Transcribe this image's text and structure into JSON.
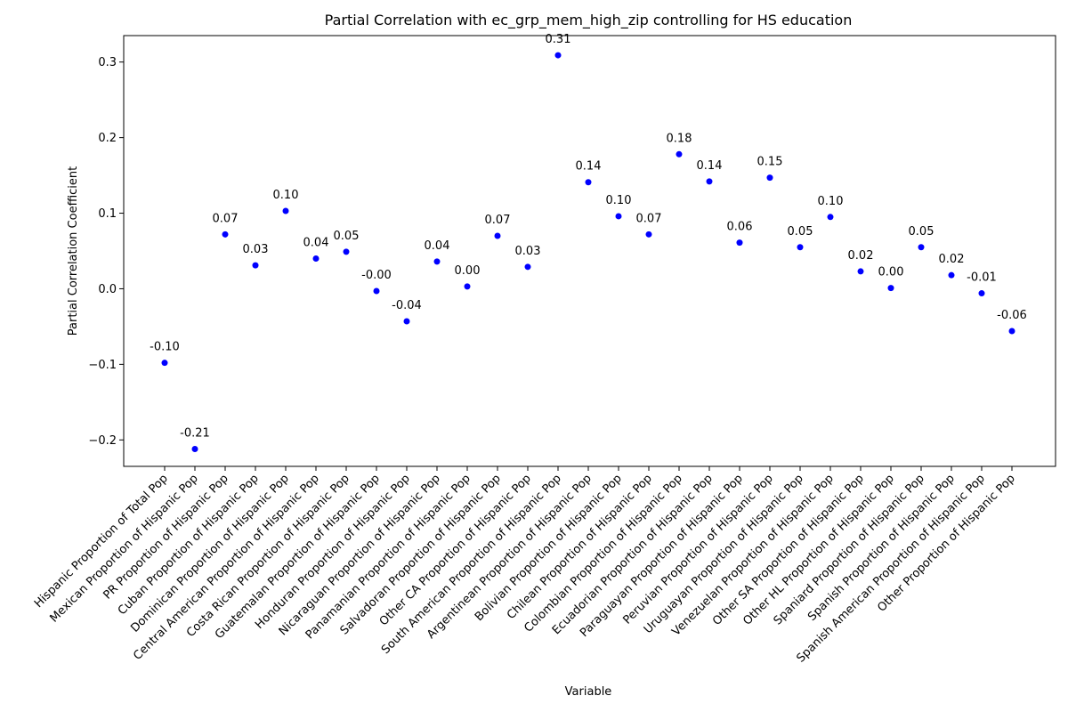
{
  "chart_data": {
    "type": "scatter",
    "title": "Partial Correlation with ec_grp_mem_high_zip controlling for HS education",
    "xlabel": "Variable",
    "ylabel": "Partial Correlation Coefficient",
    "ylim": [
      -0.235,
      0.335
    ],
    "yticks": [
      -0.2,
      -0.1,
      0.0,
      0.1,
      0.2,
      0.3
    ],
    "ytick_labels": [
      "−0.2",
      "−0.1",
      "0.0",
      "0.1",
      "0.2",
      "0.3"
    ],
    "grid": false,
    "marker_color": "#0000ff",
    "categories": [
      "Hispanic Proportion of Total Pop",
      "Mexican Proportion of Hispanic Pop",
      "PR Proportion of Hispanic Pop",
      "Cuban Proportion of Hispanic Pop",
      "Dominican Proportion of Hispanic Pop",
      "Central American Proportion of Hispanic Pop",
      "Costa Rican Proportion of Hispanic Pop",
      "Guatemalan Proportion of Hispanic Pop",
      "Honduran Proportion of Hispanic Pop",
      "Nicaraguan Proportion of Hispanic Pop",
      "Panamanian Proportion of Hispanic Pop",
      "Salvadoran Proportion of Hispanic Pop",
      "Other CA Proportion of Hispanic Pop",
      "South American Proportion of Hispanic Pop",
      "Argentinean Proportion of Hispanic Pop",
      "Bolivian Proportion of Hispanic Pop",
      "Chilean Proportion of Hispanic Pop",
      "Colombian Proportion of Hispanic Pop",
      "Ecuadorian Proportion of Hispanic Pop",
      "Paraguayan Proportion of Hispanic Pop",
      "Peruvian Proportion of Hispanic Pop",
      "Uruguayan Proportion of Hispanic Pop",
      "Venezuelan Proportion of Hispanic Pop",
      "Other SA Proportion of Hispanic Pop",
      "Other HL Proportion of Hispanic Pop",
      "Spaniard Proportion of Hispanic Pop",
      "Spanish Proportion of Hispanic Pop",
      "Spanish American Proportion of Hispanic Pop",
      "Other Proportion of Hispanic Pop"
    ],
    "values": [
      -0.098,
      -0.212,
      0.072,
      0.031,
      0.103,
      0.04,
      0.049,
      -0.003,
      -0.043,
      0.036,
      0.003,
      0.07,
      0.029,
      0.309,
      0.141,
      0.096,
      0.072,
      0.178,
      0.142,
      0.061,
      0.147,
      0.055,
      0.095,
      0.023,
      0.001,
      0.055,
      0.018,
      -0.006,
      -0.056
    ],
    "value_labels": [
      "-0.10",
      "-0.21",
      "0.07",
      "0.03",
      "0.10",
      "0.04",
      "0.05",
      "-0.00",
      "-0.04",
      "0.04",
      "0.00",
      "0.07",
      "0.03",
      "0.31",
      "0.14",
      "0.10",
      "0.07",
      "0.18",
      "0.14",
      "0.06",
      "0.15",
      "0.05",
      "0.10",
      "0.02",
      "0.00",
      "0.05",
      "0.02",
      "-0.01",
      "-0.06"
    ]
  }
}
